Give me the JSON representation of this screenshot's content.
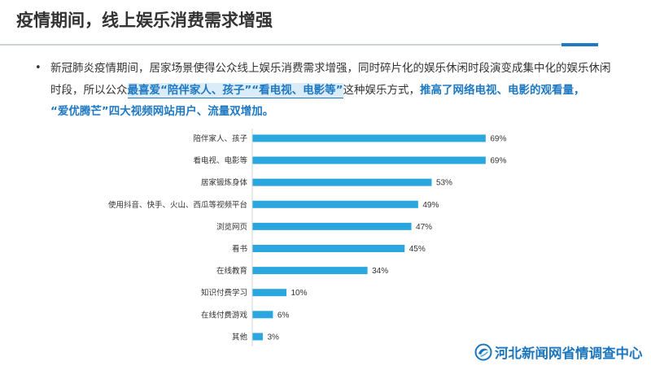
{
  "slide": {
    "title": "疫情期间，线上娱乐消费需求增强",
    "bullet": "•",
    "paragraph": {
      "line1": "新冠肺炎疫情期间，居家场景使得公众线上娱乐消费需求增强，同时碎片化的娱乐休闲时段演变成集中化的娱乐休闲",
      "line2_plain_a": "时段，所以公众",
      "line2_highlight_a": "最喜爱“陪伴家人、孩子”“看电视、电影等”",
      "line2_plain_b": "这种娱乐方式，",
      "line2_highlight_b": "推高了网络电视、电影的观看量，",
      "line3_highlight": "“爱优腾芒”四大视频网站用户、流量双增加。"
    }
  },
  "colors": {
    "title": "#333333",
    "accent": "#1e78c2",
    "bar": "#2aa7de",
    "axis": "#d0d0d0",
    "logo": "#1b76bd"
  },
  "chart_data": {
    "type": "bar",
    "title": "",
    "xlabel": "",
    "ylabel": "",
    "xlim": [
      0,
      100
    ],
    "categories": [
      "陪伴家人、孩子",
      "看电视、电影等",
      "居家锻炼身体",
      "使用抖音、快手、火山、西瓜等视频平台",
      "浏览网页",
      "看书",
      "在线教育",
      "知识付费学习",
      "在线付费游戏",
      "其他"
    ],
    "values": [
      69,
      69,
      53,
      49,
      47,
      45,
      34,
      10,
      6,
      3
    ],
    "data_labels": [
      "69%",
      "69%",
      "53%",
      "49%",
      "47%",
      "45%",
      "34%",
      "10%",
      "6%",
      "3%"
    ]
  },
  "logo": {
    "icon": "logo-emblem-icon",
    "text": "河北新闻网省情调查中心"
  }
}
